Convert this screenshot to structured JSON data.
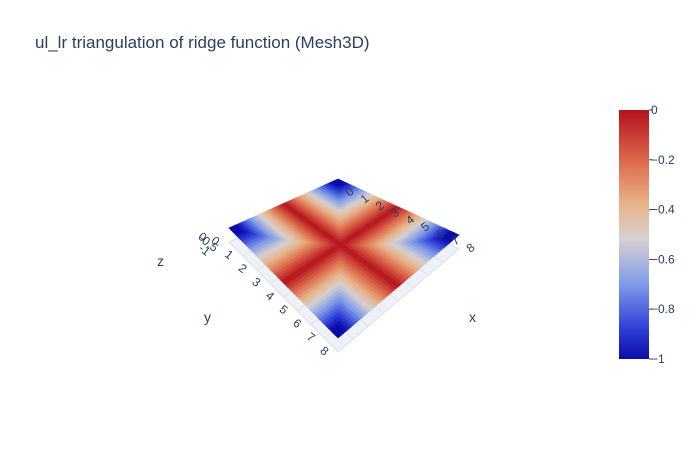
{
  "chart_data": {
    "type": "mesh3d",
    "title": "ul_lr triangulation of ridge function (Mesh3D)",
    "grid": {
      "x": [
        0,
        1,
        2,
        3,
        4,
        5,
        6,
        7,
        8
      ],
      "y": [
        0,
        1,
        2,
        3,
        4,
        5,
        6,
        7,
        8
      ]
    },
    "z_function": "-(|x-4| + |y-4|) with cross-shaped ridges at x=4 and y=4, range [-1, 0]",
    "axes": {
      "x": {
        "label": "x",
        "range": [
          0,
          8
        ],
        "ticks": [
          "0",
          "1",
          "2",
          "3",
          "4",
          "5",
          "6",
          "7",
          "8"
        ]
      },
      "y": {
        "label": "y",
        "range": [
          0,
          8
        ],
        "ticks": [
          "0",
          "1",
          "2",
          "3",
          "4",
          "5",
          "6",
          "7",
          "8"
        ]
      },
      "z": {
        "label": "z",
        "range": [
          -1,
          0
        ],
        "ticks": [
          "0",
          "-0.5",
          "-1"
        ]
      }
    },
    "colorscale": {
      "name": "RdBu_r-like",
      "stops": [
        [
          0.0,
          "#0c0ca8"
        ],
        [
          0.12,
          "#2e3fd6"
        ],
        [
          0.3,
          "#7f9ae8"
        ],
        [
          0.48,
          "#d6d0d2"
        ],
        [
          0.62,
          "#e8b489"
        ],
        [
          0.78,
          "#de7050"
        ],
        [
          1.0,
          "#b5121d"
        ]
      ],
      "cmin": -1,
      "cmax": 0,
      "ticks": [
        "0",
        "−0.2",
        "−0.4",
        "−0.6",
        "−0.8",
        "−1"
      ]
    }
  }
}
